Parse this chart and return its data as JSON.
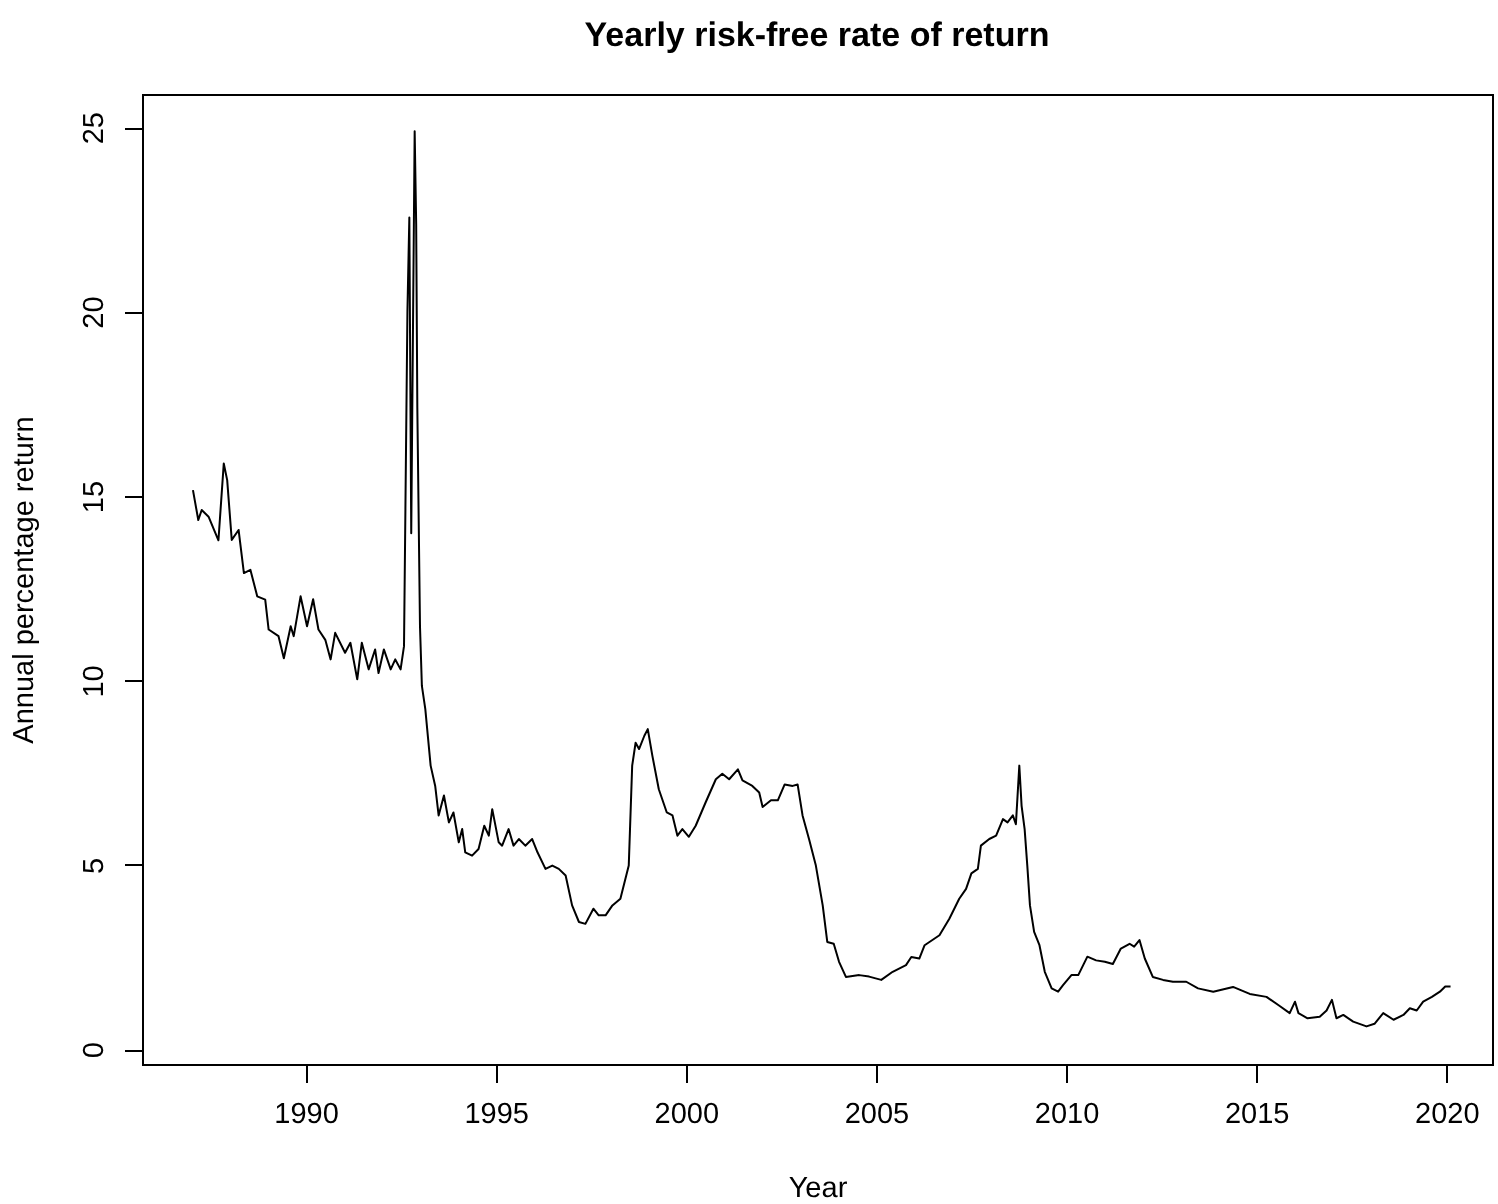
{
  "chart_data": {
    "type": "line",
    "title": "Yearly risk-free rate of return",
    "xlabel": "Year",
    "ylabel": "Annual percentage return",
    "x": [
      1987.04,
      1987.18,
      1987.27,
      1987.45,
      1987.71,
      1987.85,
      1987.94,
      1988.06,
      1988.24,
      1988.38,
      1988.55,
      1988.73,
      1988.94,
      1989.03,
      1989.29,
      1989.43,
      1989.61,
      1989.69,
      1989.87,
      1990.04,
      1990.2,
      1990.34,
      1990.52,
      1990.66,
      1990.78,
      1991.04,
      1991.18,
      1991.36,
      1991.48,
      1991.66,
      1991.83,
      1991.92,
      1992.06,
      1992.24,
      1992.36,
      1992.5,
      1992.59,
      1992.68,
      1992.73,
      1992.78,
      1992.87,
      1992.91,
      1992.94,
      1993.01,
      1993.06,
      1993.15,
      1993.29,
      1993.41,
      1993.5,
      1993.64,
      1993.77,
      1993.89,
      1994.03,
      1994.12,
      1994.2,
      1994.38,
      1994.55,
      1994.7,
      1994.82,
      1994.91,
      1995.08,
      1995.17,
      1995.34,
      1995.47,
      1995.61,
      1995.78,
      1995.96,
      1996.1,
      1996.31,
      1996.49,
      1996.66,
      1996.84,
      1997.01,
      1997.19,
      1997.36,
      1997.57,
      1997.71,
      1997.89,
      1998.07,
      1998.28,
      1998.5,
      1998.59,
      1998.68,
      1998.77,
      1998.91,
      1999.0,
      1999.12,
      1999.29,
      1999.5,
      1999.65,
      1999.78,
      1999.91,
      2000.08,
      2000.26,
      2000.52,
      2000.79,
      2000.96,
      2001.14,
      2001.37,
      2001.49,
      2001.75,
      2001.93,
      2002.02,
      2002.24,
      2002.42,
      2002.6,
      2002.81,
      2002.94,
      2003.07,
      2003.24,
      2003.42,
      2003.6,
      2003.72,
      2003.89,
      2004.03,
      2004.21,
      2004.56,
      2004.82,
      2005.14,
      2005.44,
      2005.79,
      2005.93,
      2006.14,
      2006.28,
      2006.67,
      2006.93,
      2007.19,
      2007.37,
      2007.51,
      2007.68,
      2007.76,
      2007.98,
      2008.16,
      2008.34,
      2008.46,
      2008.6,
      2008.68,
      2008.77,
      2008.83,
      2008.91,
      2008.98,
      2009.05,
      2009.16,
      2009.3,
      2009.44,
      2009.62,
      2009.79,
      2009.92,
      2010.14,
      2010.32,
      2010.56,
      2010.79,
      2011.02,
      2011.23,
      2011.44,
      2011.67,
      2011.79,
      2011.93,
      2012.07,
      2012.28,
      2012.55,
      2012.81,
      2013.16,
      2013.47,
      2013.87,
      2014.39,
      2014.83,
      2015.27,
      2015.58,
      2015.88,
      2016.02,
      2016.11,
      2016.35,
      2016.67,
      2016.85,
      2016.99,
      2017.11,
      2017.29,
      2017.55,
      2017.9,
      2018.11,
      2018.34,
      2018.61,
      2018.87,
      2019.04,
      2019.22,
      2019.39,
      2019.62,
      2019.83,
      2019.97,
      2020.11
    ],
    "series": [
      {
        "color": "#000000",
        "values": [
          15.16,
          14.35,
          14.62,
          14.44,
          13.8,
          15.88,
          15.43,
          13.81,
          14.08,
          12.91,
          13.0,
          12.28,
          12.19,
          11.38,
          11.2,
          10.6,
          11.47,
          11.2,
          12.28,
          11.47,
          12.2,
          11.38,
          11.1,
          10.57,
          11.29,
          10.75,
          11.02,
          10.03,
          11.02,
          10.3,
          10.84,
          10.2,
          10.84,
          10.3,
          10.57,
          10.3,
          10.93,
          20.03,
          22.55,
          13.99,
          24.89,
          22.37,
          17.4,
          11.47,
          9.85,
          9.22,
          7.69,
          7.14,
          6.34,
          6.88,
          6.15,
          6.42,
          5.61,
          5.97,
          5.34,
          5.25,
          5.43,
          6.06,
          5.79,
          6.51,
          5.61,
          5.52,
          5.97,
          5.52,
          5.7,
          5.52,
          5.7,
          5.34,
          4.89,
          4.98,
          4.89,
          4.71,
          3.9,
          3.45,
          3.4,
          3.81,
          3.63,
          3.63,
          3.9,
          4.08,
          4.98,
          7.69,
          8.31,
          8.14,
          8.5,
          8.68,
          7.96,
          7.05,
          6.42,
          6.34,
          5.79,
          5.97,
          5.76,
          6.06,
          6.69,
          7.32,
          7.47,
          7.32,
          7.59,
          7.29,
          7.14,
          6.96,
          6.57,
          6.75,
          6.75,
          7.18,
          7.14,
          7.18,
          6.34,
          5.7,
          4.98,
          3.9,
          2.91,
          2.86,
          2.37,
          1.96,
          2.01,
          1.97,
          1.88,
          2.1,
          2.28,
          2.5,
          2.46,
          2.82,
          3.09,
          3.54,
          4.08,
          4.35,
          4.77,
          4.89,
          5.52,
          5.7,
          5.79,
          6.24,
          6.15,
          6.34,
          6.1,
          7.69,
          6.6,
          5.97,
          4.98,
          3.9,
          3.18,
          2.82,
          2.1,
          1.65,
          1.56,
          1.74,
          2.01,
          2.01,
          2.51,
          2.41,
          2.37,
          2.31,
          2.73,
          2.86,
          2.78,
          2.96,
          2.46,
          1.96,
          1.88,
          1.83,
          1.83,
          1.65,
          1.56,
          1.69,
          1.5,
          1.42,
          1.2,
          0.98,
          1.29,
          0.98,
          0.84,
          0.88,
          1.05,
          1.34,
          0.84,
          0.93,
          0.75,
          0.62,
          0.69,
          0.98,
          0.8,
          0.93,
          1.11,
          1.05,
          1.29,
          1.42,
          1.56,
          1.7,
          1.7
        ]
      }
    ],
    "xlim": [
      1985.7,
      2021.2
    ],
    "ylim": [
      -0.4,
      25.9
    ],
    "xticks": [
      1990,
      1995,
      2000,
      2005,
      2010,
      2015,
      2020
    ],
    "yticks": [
      0,
      5,
      10,
      15,
      20,
      25
    ]
  }
}
